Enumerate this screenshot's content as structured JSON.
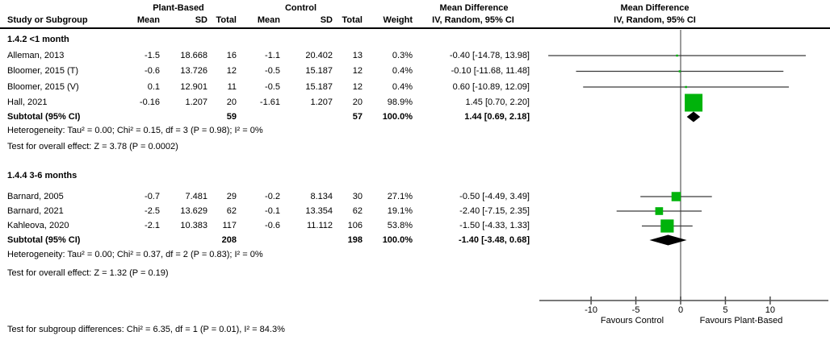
{
  "header": {
    "col_study": "Study or Subgroup",
    "group_experimental": "Plant-Based",
    "group_control": "Control",
    "col_mean": "Mean",
    "col_sd": "SD",
    "col_total": "Total",
    "col_weight": "Weight",
    "md_title": "Mean Difference",
    "md_method": "IV, Random, 95% CI"
  },
  "chart_data": {
    "type": "forest",
    "effect_measure": "Mean Difference",
    "model": "IV, Random, 95% CI",
    "axis_ticks": [
      -10,
      -5,
      0,
      5,
      10
    ],
    "xlim": [
      -15.8,
      16.5
    ],
    "favours_left": "Favours Control",
    "favours_right": "Favours Plant-Based",
    "marker_color": "#00b30b",
    "diamond_color": "#000000",
    "ci_line_color": "#3a3a3a",
    "axis_color": "#4d4d4d",
    "zero_line_color": "#7a7a7a",
    "subgroups": [
      {
        "label": "1.4.2 <1 month",
        "studies": [
          {
            "name": "Alleman, 2013",
            "mean_pb": "-1.5",
            "sd_pb": "18.668",
            "total_pb": "16",
            "mean_c": "-1.1",
            "sd_c": "20.402",
            "total_c": "13",
            "weight": "0.3%",
            "weight_pct": 0.3,
            "md": -0.4,
            "ci_low": -14.78,
            "ci_high": 13.98,
            "md_text": "-0.40 [-14.78, 13.98]"
          },
          {
            "name": "Bloomer, 2015 (T)",
            "mean_pb": "-0.6",
            "sd_pb": "13.726",
            "total_pb": "12",
            "mean_c": "-0.5",
            "sd_c": "15.187",
            "total_c": "12",
            "weight": "0.4%",
            "weight_pct": 0.4,
            "md": -0.1,
            "ci_low": -11.68,
            "ci_high": 11.48,
            "md_text": "-0.10 [-11.68, 11.48]"
          },
          {
            "name": "Bloomer, 2015 (V)",
            "mean_pb": "0.1",
            "sd_pb": "12.901",
            "total_pb": "11",
            "mean_c": "-0.5",
            "sd_c": "15.187",
            "total_c": "12",
            "weight": "0.4%",
            "weight_pct": 0.4,
            "md": 0.6,
            "ci_low": -10.89,
            "ci_high": 12.09,
            "md_text": "0.60 [-10.89, 12.09]"
          },
          {
            "name": "Hall, 2021",
            "mean_pb": "-0.16",
            "sd_pb": "1.207",
            "total_pb": "20",
            "mean_c": "-1.61",
            "sd_c": "1.207",
            "total_c": "20",
            "weight": "98.9%",
            "weight_pct": 98.9,
            "md": 1.45,
            "ci_low": 0.7,
            "ci_high": 2.2,
            "md_text": "1.45 [0.70, 2.20]"
          }
        ],
        "subtotal": {
          "label": "Subtotal (95% CI)",
          "total_pb": "59",
          "total_c": "57",
          "weight": "100.0%",
          "md": 1.44,
          "ci_low": 0.69,
          "ci_high": 2.18,
          "md_text": "1.44 [0.69, 2.18]"
        },
        "heterogeneity": "Heterogeneity: Tau² = 0.00; Chi² = 0.15, df = 3 (P = 0.98); I² = 0%",
        "overall_effect": "Test for overall effect: Z = 3.78 (P = 0.0002)"
      },
      {
        "label": "1.4.4 3-6 months",
        "studies": [
          {
            "name": "Barnard, 2005",
            "mean_pb": "-0.7",
            "sd_pb": "7.481",
            "total_pb": "29",
            "mean_c": "-0.2",
            "sd_c": "8.134",
            "total_c": "30",
            "weight": "27.1%",
            "weight_pct": 27.1,
            "md": -0.5,
            "ci_low": -4.49,
            "ci_high": 3.49,
            "md_text": "-0.50 [-4.49, 3.49]"
          },
          {
            "name": "Barnard, 2021",
            "mean_pb": "-2.5",
            "sd_pb": "13.629",
            "total_pb": "62",
            "mean_c": "-0.1",
            "sd_c": "13.354",
            "total_c": "62",
            "weight": "19.1%",
            "weight_pct": 19.1,
            "md": -2.4,
            "ci_low": -7.15,
            "ci_high": 2.35,
            "md_text": "-2.40 [-7.15, 2.35]"
          },
          {
            "name": "Kahleova, 2020",
            "mean_pb": "-2.1",
            "sd_pb": "10.383",
            "total_pb": "117",
            "mean_c": "-0.6",
            "sd_c": "11.112",
            "total_c": "106",
            "weight": "53.8%",
            "weight_pct": 53.8,
            "md": -1.5,
            "ci_low": -4.33,
            "ci_high": 1.33,
            "md_text": "-1.50 [-4.33, 1.33]"
          }
        ],
        "subtotal": {
          "label": "Subtotal (95% CI)",
          "total_pb": "208",
          "total_c": "198",
          "weight": "100.0%",
          "md": -1.4,
          "ci_low": -3.48,
          "ci_high": 0.68,
          "md_text": "-1.40 [-3.48, 0.68]"
        },
        "heterogeneity": "Heterogeneity: Tau² = 0.00; Chi² = 0.37, df = 2 (P = 0.83); I² = 0%",
        "overall_effect": "Test for overall effect: Z = 1.32 (P = 0.19)"
      }
    ],
    "footer": "Test for subgroup differences: Chi² = 6.35, df = 1 (P = 0.01), I² = 84.3%"
  }
}
